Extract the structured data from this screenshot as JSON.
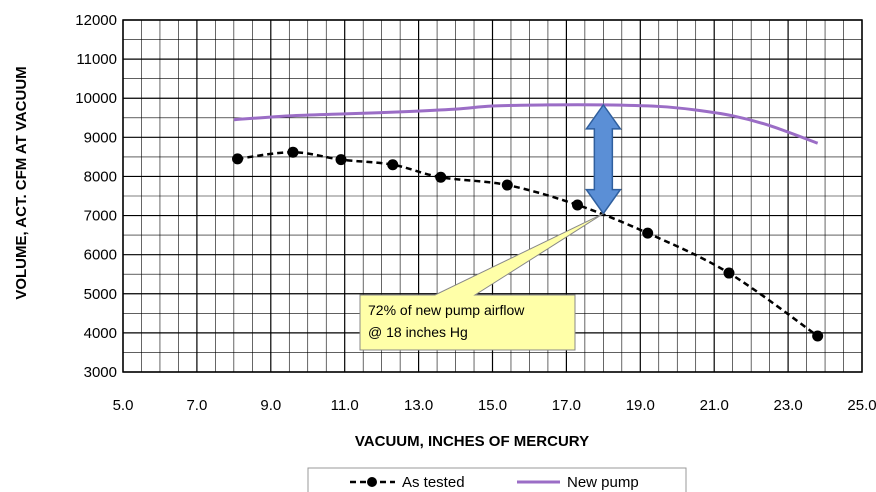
{
  "chart_data": {
    "type": "line",
    "xlabel": "VACUUM, INCHES OF MERCURY",
    "ylabel": "VOLUME, ACT. CFM AT VACUUM",
    "xlim": [
      5.0,
      25.0
    ],
    "ylim": [
      3000,
      12000
    ],
    "x_ticks": [
      "5.0",
      "7.0",
      "9.0",
      "11.0",
      "13.0",
      "15.0",
      "17.0",
      "19.0",
      "21.0",
      "23.0",
      "25.0"
    ],
    "y_ticks": [
      "3000",
      "4000",
      "5000",
      "6000",
      "7000",
      "8000",
      "9000",
      "10000",
      "11000",
      "12000"
    ],
    "x_tick_values": [
      5,
      7,
      9,
      11,
      13,
      15,
      17,
      19,
      21,
      23,
      25
    ],
    "y_tick_values": [
      3000,
      4000,
      5000,
      6000,
      7000,
      8000,
      9000,
      10000,
      11000,
      12000
    ],
    "grid": true,
    "minor_grid_x": 0.5,
    "minor_grid_y": 500,
    "legend_position": "bottom",
    "series": [
      {
        "name": "As tested",
        "color": "#000000",
        "style": "dashed-with-markers",
        "x": [
          8.1,
          9.6,
          10.9,
          12.3,
          13.6,
          15.4,
          17.3,
          19.2,
          21.4,
          23.8
        ],
        "y": [
          8450,
          8620,
          8430,
          8300,
          7980,
          7780,
          7270,
          6550,
          5530,
          3920
        ]
      },
      {
        "name": "New pump",
        "color": "#9b6dc6",
        "style": "solid",
        "x": [
          8.0,
          9.5,
          11.0,
          12.5,
          14.0,
          15.0,
          16.5,
          18.0,
          19.5,
          20.5,
          21.5,
          22.5,
          23.8
        ],
        "y": [
          9450,
          9550,
          9600,
          9650,
          9720,
          9800,
          9830,
          9830,
          9790,
          9700,
          9550,
          9300,
          8850
        ]
      }
    ],
    "annotations": [
      {
        "type": "double-arrow",
        "x": 18.0,
        "y_from": 7050,
        "y_to": 9830,
        "color": "#5b8fd6"
      },
      {
        "type": "callout",
        "lines": [
          "72% of new pump airflow",
          "@ 18 inches Hg"
        ],
        "point_x": 18.0,
        "point_y": 7050,
        "fill": "#ffffa8"
      }
    ]
  }
}
